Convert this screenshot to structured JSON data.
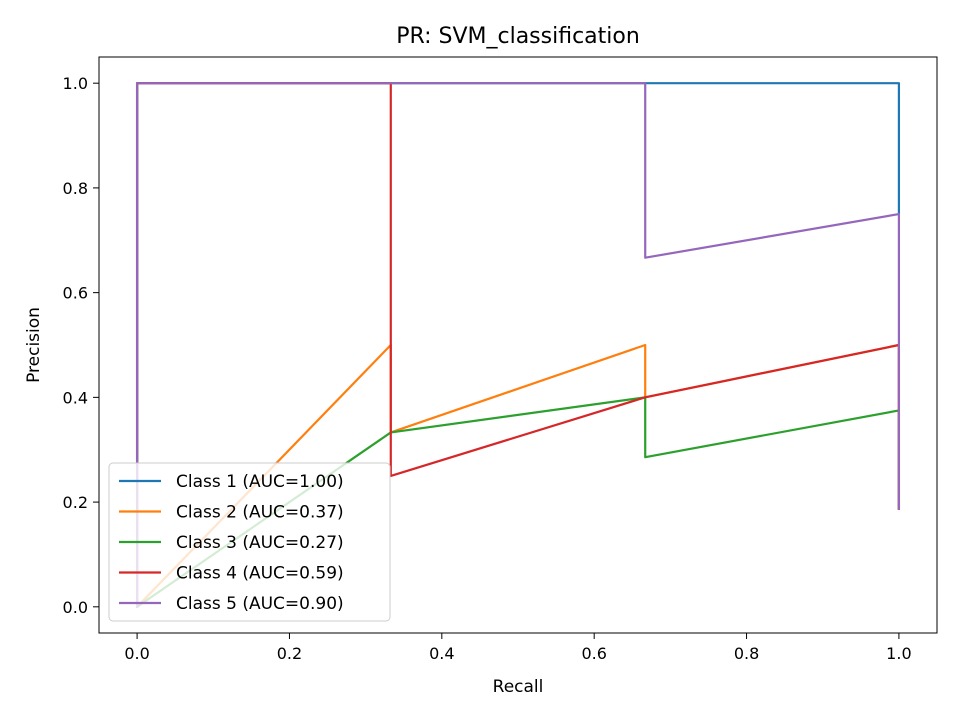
{
  "chart_data": {
    "type": "line",
    "title": "PR: SVM_classification",
    "xlabel": "Recall",
    "ylabel": "Precision",
    "xlim": [
      -0.05,
      1.05
    ],
    "ylim": [
      -0.05,
      1.05
    ],
    "xticks": [
      0.0,
      0.2,
      0.4,
      0.6,
      0.8,
      1.0
    ],
    "yticks": [
      0.0,
      0.2,
      0.4,
      0.6,
      0.8,
      1.0
    ],
    "xtick_labels": [
      "0.0",
      "0.2",
      "0.4",
      "0.6",
      "0.8",
      "1.0"
    ],
    "ytick_labels": [
      "0.0",
      "0.2",
      "0.4",
      "0.6",
      "0.8",
      "1.0"
    ],
    "grid": false,
    "legend_position": "lower-left",
    "series": [
      {
        "name": "Class 1 (AUC=1.00)",
        "color": "#1f77b4",
        "points": [
          [
            0.0,
            0.0
          ],
          [
            0.0,
            1.0
          ],
          [
            1.0,
            1.0
          ],
          [
            1.0,
            0.75
          ]
        ]
      },
      {
        "name": "Class 2 (AUC=0.37)",
        "color": "#ff7f0e",
        "points": [
          [
            0.0,
            0.0
          ],
          [
            0.333,
            0.5
          ],
          [
            0.333,
            0.333
          ],
          [
            0.667,
            0.5
          ],
          [
            0.667,
            0.4
          ],
          [
            1.0,
            0.5
          ],
          [
            1.0,
            0.1875
          ]
        ]
      },
      {
        "name": "Class 3 (AUC=0.27)",
        "color": "#2ca02c",
        "points": [
          [
            0.0,
            0.0
          ],
          [
            0.0,
            1.0
          ],
          [
            0.0,
            0.0
          ],
          [
            0.333,
            0.333
          ],
          [
            0.667,
            0.4
          ],
          [
            0.667,
            0.2857
          ],
          [
            1.0,
            0.375
          ],
          [
            1.0,
            0.1875
          ]
        ]
      },
      {
        "name": "Class 4 (AUC=0.59)",
        "color": "#d62728",
        "points": [
          [
            0.0,
            0.0
          ],
          [
            0.0,
            1.0
          ],
          [
            0.333,
            1.0
          ],
          [
            0.333,
            0.25
          ],
          [
            0.667,
            0.4
          ],
          [
            1.0,
            0.5
          ],
          [
            1.0,
            0.1875
          ]
        ]
      },
      {
        "name": "Class 5 (AUC=0.90)",
        "color": "#9467bd",
        "points": [
          [
            0.0,
            0.0
          ],
          [
            0.0,
            1.0
          ],
          [
            0.667,
            1.0
          ],
          [
            0.667,
            0.6667
          ],
          [
            1.0,
            0.75
          ],
          [
            1.0,
            0.1875
          ]
        ]
      }
    ]
  }
}
